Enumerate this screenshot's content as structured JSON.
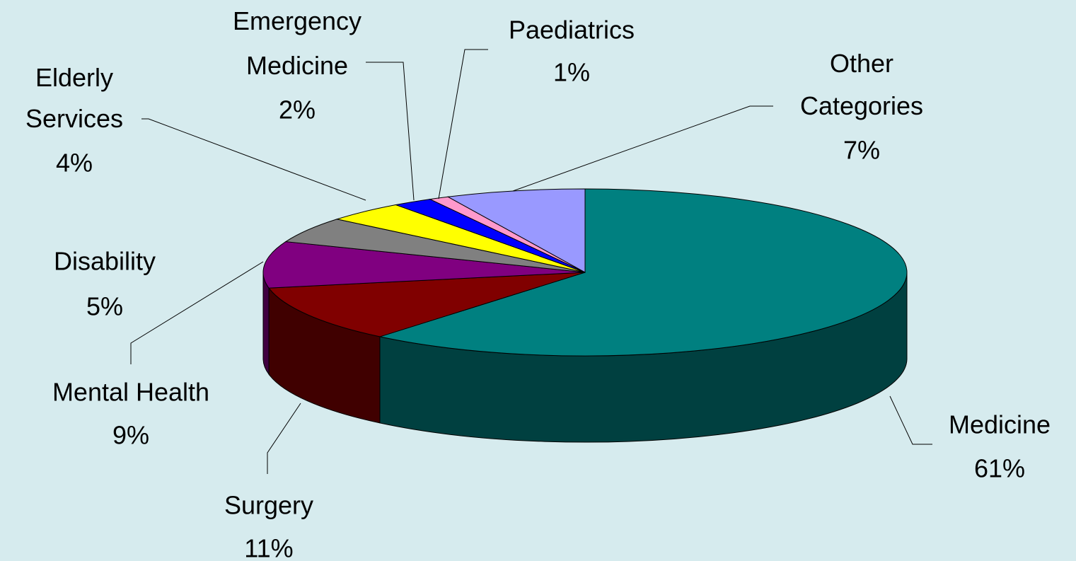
{
  "chart_data": {
    "type": "pie",
    "categories": [
      "Medicine",
      "Surgery",
      "Mental Health",
      "Disability",
      "Elderly Services",
      "Emergency Medicine",
      "Paediatrics",
      "Other Categories"
    ],
    "values": [
      61,
      11,
      9,
      5,
      4,
      2,
      1,
      7
    ],
    "value_labels": [
      "61%",
      "11%",
      "9%",
      "5%",
      "4%",
      "2%",
      "1%",
      "7%"
    ],
    "colors": [
      "#008080",
      "#800000",
      "#800080",
      "#808080",
      "#ffff00",
      "#0000ff",
      "#ff99cc",
      "#9999ff"
    ]
  }
}
